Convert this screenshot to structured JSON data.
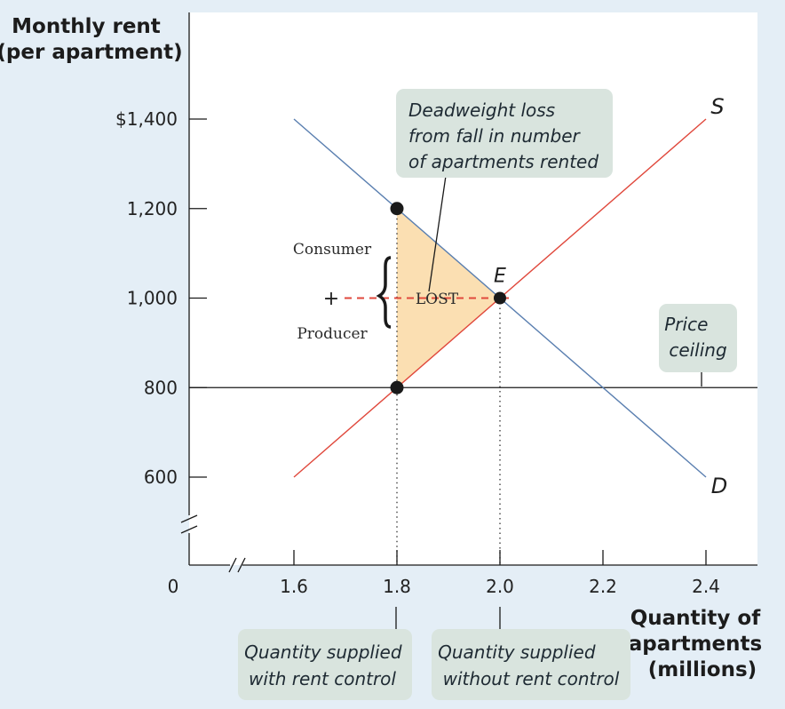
{
  "chart_data": {
    "type": "line",
    "ylabel_lines": [
      "Monthly rent",
      "(per apartment)"
    ],
    "xlabel_lines": [
      "Quantity of",
      "apartments",
      "(millions)"
    ],
    "origin_label": "0",
    "y_ticks": [
      {
        "value": 1400,
        "label": "$1,400"
      },
      {
        "value": 1200,
        "label": "1,200"
      },
      {
        "value": 1000,
        "label": "1,000"
      },
      {
        "value": 800,
        "label": "800"
      },
      {
        "value": 600,
        "label": "600"
      }
    ],
    "x_ticks": [
      {
        "value": 1.6,
        "label": "1.6"
      },
      {
        "value": 1.8,
        "label": "1.8"
      },
      {
        "value": 2.0,
        "label": "2.0"
      },
      {
        "value": 2.2,
        "label": "2.2"
      },
      {
        "value": 2.4,
        "label": "2.4"
      }
    ],
    "series": [
      {
        "name": "S",
        "color": "#e0483c",
        "points": [
          [
            1.6,
            600
          ],
          [
            2.4,
            1400
          ]
        ]
      },
      {
        "name": "D",
        "color": "#5a7fb0",
        "points": [
          [
            1.6,
            1400
          ],
          [
            2.4,
            600
          ]
        ]
      }
    ],
    "price_ceiling": {
      "value": 800,
      "label_lines": [
        "Price",
        "ceiling"
      ]
    },
    "equilibrium": {
      "label": "E",
      "x": 2.0,
      "y": 1000
    },
    "points": [
      {
        "x": 1.8,
        "y": 1200
      },
      {
        "x": 1.8,
        "y": 800
      },
      {
        "x": 2.0,
        "y": 1000
      }
    ],
    "deadweight_loss": {
      "vertices": [
        [
          1.8,
          1200
        ],
        [
          1.8,
          800
        ],
        [
          2.0,
          1000
        ]
      ],
      "fill": "#fbdfb2",
      "callout_lines": [
        "Deadweight loss",
        "from fall in number",
        "of apartments rented"
      ]
    },
    "surplus_labels": {
      "consumer": "Consumer",
      "plus": "+",
      "producer": "Producer",
      "lost": "LOST"
    },
    "quantity_callouts": [
      {
        "x": 1.8,
        "lines": [
          "Quantity supplied",
          "with rent control"
        ]
      },
      {
        "x": 2.0,
        "lines": [
          "Quantity supplied",
          "without rent control"
        ]
      }
    ],
    "xlim": [
      1.6,
      2.4
    ],
    "ylim": [
      600,
      1400
    ],
    "grid": false
  }
}
